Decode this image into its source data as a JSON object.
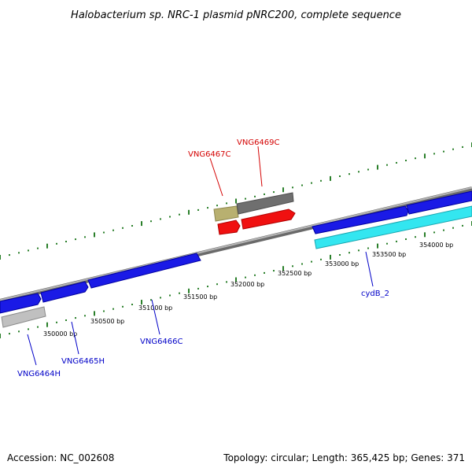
{
  "title": "Halobacterium sp. NRC-1 plasmid pNRC200, complete sequence",
  "footer": {
    "accession": "Accession: NC_002608",
    "summary": "Topology: circular; Length: 365,425 bp; Genes: 371"
  },
  "colors": {
    "backbone": "#8c8c8c",
    "tick": "#2a7f2a",
    "forward_gene": "#1a1ae6",
    "reverse_gene": "#1a1ae6",
    "cyan_gene": "#33e6f0",
    "red_gene": "#f01010",
    "khaki_gene": "#b8b070",
    "gray_gene": "#6f6f6f",
    "silver_gene": "#c0c0c0",
    "label_red": "#d40000",
    "label_blue": "#0000c8"
  },
  "scale": {
    "tick_labels": [
      "350000 bp",
      "350500 bp",
      "351000 bp",
      "351500 bp",
      "352000 bp",
      "352500 bp",
      "353000 bp",
      "353500 bp",
      "354000 bp"
    ]
  },
  "gene_labels": {
    "top": [
      "VNG6467C",
      "VNG6469C"
    ],
    "bottom": [
      "VNG6464H",
      "VNG6465H",
      "VNG6466C",
      "cydB_2"
    ]
  }
}
